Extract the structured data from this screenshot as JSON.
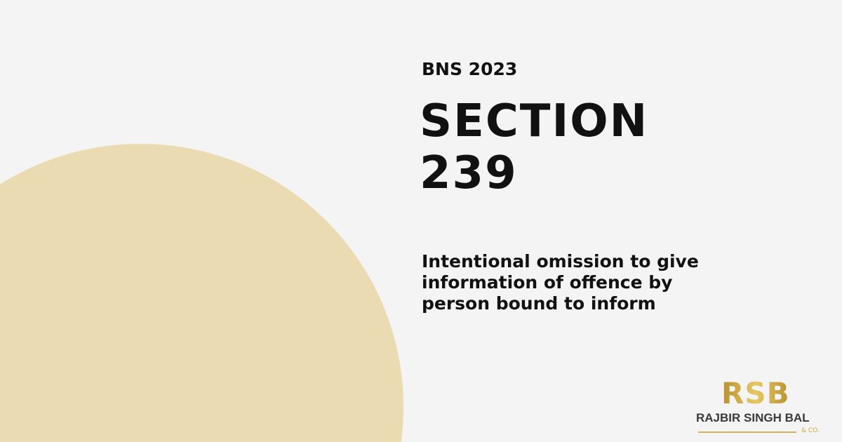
{
  "kicker": "BNS 2023",
  "title_line1": "SECTION",
  "title_line2": "239",
  "description": "Intentional omission to give information of offence by person bound to inform",
  "logo": {
    "monogram": "RSB",
    "name": "RAJBIR SINGH BAL",
    "suffix": "& CO."
  },
  "colors": {
    "background": "#f4f4f4",
    "circle": "#eadbb2",
    "gold": "#c9a444",
    "text": "#111111"
  }
}
